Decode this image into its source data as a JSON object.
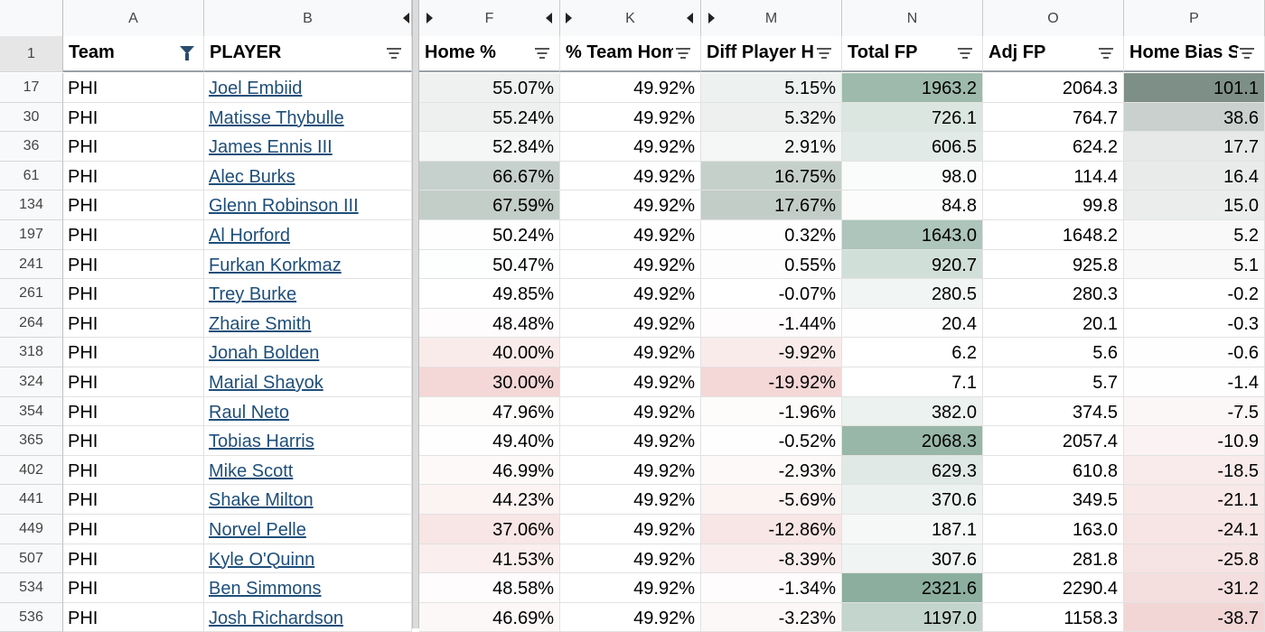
{
  "columns": [
    {
      "letter": "A",
      "header": "Team"
    },
    {
      "letter": "B",
      "header": "PLAYER"
    },
    {
      "letter": "F",
      "header": "Home %"
    },
    {
      "letter": "K",
      "header": "% Team Hom"
    },
    {
      "letter": "M",
      "header": "Diff Player H"
    },
    {
      "letter": "N",
      "header": "Total FP"
    },
    {
      "letter": "O",
      "header": "Adj FP"
    },
    {
      "letter": "P",
      "header": "Home Bias S"
    }
  ],
  "header_row_number": "1",
  "rows": [
    {
      "n": "17",
      "team": "PHI",
      "player": "Joel Embiid",
      "home": "55.07%",
      "team_home": "49.92%",
      "diff": "5.15%",
      "total": "1963.2",
      "adj": "2064.3",
      "bias": "101.1"
    },
    {
      "n": "30",
      "team": "PHI",
      "player": "Matisse Thybulle",
      "home": "55.24%",
      "team_home": "49.92%",
      "diff": "5.32%",
      "total": "726.1",
      "adj": "764.7",
      "bias": "38.6"
    },
    {
      "n": "36",
      "team": "PHI",
      "player": "James Ennis III",
      "home": "52.84%",
      "team_home": "49.92%",
      "diff": "2.91%",
      "total": "606.5",
      "adj": "624.2",
      "bias": "17.7"
    },
    {
      "n": "61",
      "team": "PHI",
      "player": "Alec Burks",
      "home": "66.67%",
      "team_home": "49.92%",
      "diff": "16.75%",
      "total": "98.0",
      "adj": "114.4",
      "bias": "16.4"
    },
    {
      "n": "134",
      "team": "PHI",
      "player": "Glenn Robinson III",
      "home": "67.59%",
      "team_home": "49.92%",
      "diff": "17.67%",
      "total": "84.8",
      "adj": "99.8",
      "bias": "15.0"
    },
    {
      "n": "197",
      "team": "PHI",
      "player": "Al Horford",
      "home": "50.24%",
      "team_home": "49.92%",
      "diff": "0.32%",
      "total": "1643.0",
      "adj": "1648.2",
      "bias": "5.2"
    },
    {
      "n": "241",
      "team": "PHI",
      "player": "Furkan Korkmaz",
      "home": "50.47%",
      "team_home": "49.92%",
      "diff": "0.55%",
      "total": "920.7",
      "adj": "925.8",
      "bias": "5.1"
    },
    {
      "n": "261",
      "team": "PHI",
      "player": "Trey Burke",
      "home": "49.85%",
      "team_home": "49.92%",
      "diff": "-0.07%",
      "total": "280.5",
      "adj": "280.3",
      "bias": "-0.2"
    },
    {
      "n": "264",
      "team": "PHI",
      "player": "Zhaire Smith",
      "home": "48.48%",
      "team_home": "49.92%",
      "diff": "-1.44%",
      "total": "20.4",
      "adj": "20.1",
      "bias": "-0.3"
    },
    {
      "n": "318",
      "team": "PHI",
      "player": "Jonah Bolden",
      "home": "40.00%",
      "team_home": "49.92%",
      "diff": "-9.92%",
      "total": "6.2",
      "adj": "5.6",
      "bias": "-0.6"
    },
    {
      "n": "324",
      "team": "PHI",
      "player": "Marial Shayok",
      "home": "30.00%",
      "team_home": "49.92%",
      "diff": "-19.92%",
      "total": "7.1",
      "adj": "5.7",
      "bias": "-1.4"
    },
    {
      "n": "354",
      "team": "PHI",
      "player": "Raul Neto",
      "home": "47.96%",
      "team_home": "49.92%",
      "diff": "-1.96%",
      "total": "382.0",
      "adj": "374.5",
      "bias": "-7.5"
    },
    {
      "n": "365",
      "team": "PHI",
      "player": "Tobias Harris",
      "home": "49.40%",
      "team_home": "49.92%",
      "diff": "-0.52%",
      "total": "2068.3",
      "adj": "2057.4",
      "bias": "-10.9"
    },
    {
      "n": "402",
      "team": "PHI",
      "player": "Mike Scott",
      "home": "46.99%",
      "team_home": "49.92%",
      "diff": "-2.93%",
      "total": "629.3",
      "adj": "610.8",
      "bias": "-18.5"
    },
    {
      "n": "441",
      "team": "PHI",
      "player": "Shake Milton",
      "home": "44.23%",
      "team_home": "49.92%",
      "diff": "-5.69%",
      "total": "370.6",
      "adj": "349.5",
      "bias": "-21.1"
    },
    {
      "n": "449",
      "team": "PHI",
      "player": "Norvel Pelle",
      "home": "37.06%",
      "team_home": "49.92%",
      "diff": "-12.86%",
      "total": "187.1",
      "adj": "163.0",
      "bias": "-24.1"
    },
    {
      "n": "507",
      "team": "PHI",
      "player": "Kyle O'Quinn",
      "home": "41.53%",
      "team_home": "49.92%",
      "diff": "-8.39%",
      "total": "307.6",
      "adj": "281.8",
      "bias": "-25.8"
    },
    {
      "n": "534",
      "team": "PHI",
      "player": "Ben Simmons",
      "home": "48.58%",
      "team_home": "49.92%",
      "diff": "-1.34%",
      "total": "2321.6",
      "adj": "2290.4",
      "bias": "-31.2"
    },
    {
      "n": "536",
      "team": "PHI",
      "player": "Josh Richardson",
      "home": "46.69%",
      "team_home": "49.92%",
      "diff": "-3.23%",
      "total": "1197.0",
      "adj": "1158.3",
      "bias": "-38.7"
    }
  ],
  "colors": {
    "positive_scale": "#5f8f7a",
    "negative_scale": "#e0a0a0",
    "neutral_scale": "#9aa6a0",
    "link": "#1f4f7a"
  }
}
